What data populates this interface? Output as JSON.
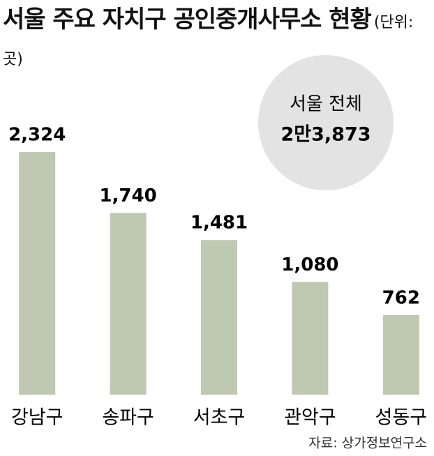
{
  "chart_data": {
    "type": "bar",
    "title": "서울 주요 자치구 공인중개사무소 현황",
    "subtitle": "(단위: 곳)",
    "categories": [
      "강남구",
      "송파구",
      "서초구",
      "관악구",
      "성동구"
    ],
    "values": [
      2324,
      1740,
      1481,
      1080,
      762
    ],
    "value_labels": [
      "2,324",
      "1,740",
      "1,481",
      "1,080",
      "762"
    ],
    "color": "#bfc9b1",
    "annotation": {
      "label": "서울 전체",
      "value": "2만3,873"
    },
    "source": "자료: 상가정보연구소"
  }
}
